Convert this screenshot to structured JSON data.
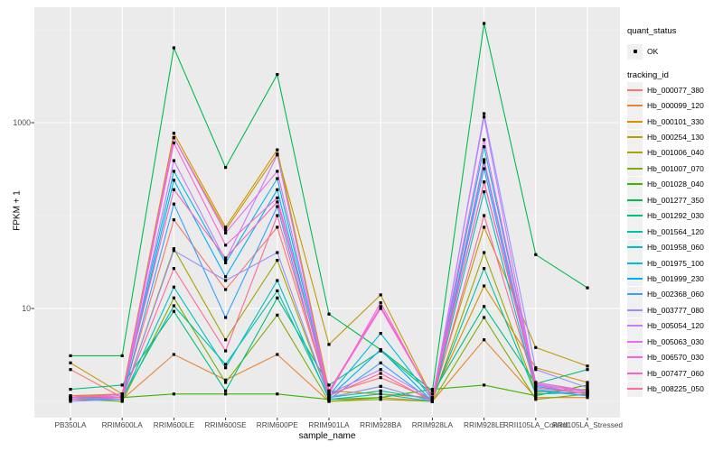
{
  "legend": {
    "quant_status_title": "quant_status",
    "ok_label": "OK",
    "tracking_id_title": "tracking_id"
  },
  "chart_data": {
    "type": "line",
    "title": "",
    "xlabel": "sample_name",
    "ylabel": "FPKM + 1",
    "yscale": "log10",
    "ylim": [
      1,
      17000
    ],
    "y_major_ticks": [
      1000,
      10
    ],
    "y_minor_gridlines": [
      1,
      100,
      10000
    ],
    "grid": true,
    "legend_position": "right",
    "panel_bg": "#EBEBEB",
    "gridline_color": "#FFFFFF",
    "point_color": "#000000",
    "point_shape": "square",
    "categories": [
      "PB350LA",
      "RRIM600LA",
      "RRIM600LE",
      "RRIM600SE",
      "RRIM600PE",
      "RRIM901LA",
      "RRIM928BA",
      "RRIM928LA",
      "RRIM928LE",
      "RRII105LA_Control",
      "RRII105LA_Stressed"
    ],
    "series": [
      {
        "name": "Hb_000077_380",
        "color": "#F8766D",
        "values": [
          2.2,
          1.1,
          90,
          16,
          75,
          1.2,
          1.8,
          1.05,
          230,
          1.5,
          1.3
        ]
      },
      {
        "name": "Hb_000099_120",
        "color": "#EA8331",
        "values": [
          1.1,
          1.05,
          3.2,
          1.7,
          3.2,
          1.0,
          1.1,
          1.0,
          4.6,
          1.1,
          1.1
        ]
      },
      {
        "name": "Hb_000101_330",
        "color": "#D89000",
        "values": [
          1.15,
          1.2,
          770,
          75,
          510,
          1.3,
          1.2,
          1.1,
          17.5,
          2.3,
          1.6
        ]
      },
      {
        "name": "Hb_000254_130",
        "color": "#C09B00",
        "values": [
          2.6,
          1.2,
          690,
          70,
          460,
          4.1,
          14,
          1.1,
          75,
          3.8,
          2.4
        ]
      },
      {
        "name": "Hb_001006_040",
        "color": "#A3A500",
        "values": [
          1.1,
          1.05,
          44,
          4.6,
          33,
          1.1,
          1.45,
          1.0,
          40,
          1.25,
          1.35
        ]
      },
      {
        "name": "Hb_001007_070",
        "color": "#7CAE00",
        "values": [
          1.05,
          1.0,
          13,
          1.6,
          8.5,
          1.0,
          1.05,
          1.0,
          8,
          1.05,
          1.2
        ]
      },
      {
        "name": "Hb_001028_040",
        "color": "#39B600",
        "values": [
          1.1,
          1.1,
          1.2,
          1.2,
          1.2,
          1.05,
          1.1,
          1.35,
          1.5,
          1.15,
          1.5
        ]
      },
      {
        "name": "Hb_001277_350",
        "color": "#00BB4E",
        "values": [
          3.1,
          3.1,
          6400,
          330,
          3300,
          8.7,
          3.6,
          1.3,
          11700,
          38,
          16.7
        ]
      },
      {
        "name": "Hb_001292_030",
        "color": "#00BF7D",
        "values": [
          1.35,
          1.5,
          9.3,
          1.3,
          13,
          1.5,
          3.5,
          1.2,
          10.5,
          1.55,
          2.2
        ]
      },
      {
        "name": "Hb_001564_120",
        "color": "#00C1A3",
        "values": [
          1.1,
          1.1,
          10.7,
          2.5,
          15.5,
          1.1,
          1.3,
          1.05,
          27,
          1.2,
          1.25
        ]
      },
      {
        "name": "Hb_001958_060",
        "color": "#00BFC4",
        "values": [
          1.05,
          1.05,
          17,
          2.3,
          20,
          1.05,
          1.2,
          1.0,
          180,
          1.3,
          1.15
        ]
      },
      {
        "name": "Hb_001975_100",
        "color": "#00BAE0",
        "values": [
          1.1,
          1.15,
          300,
          31,
          250,
          1.15,
          5.4,
          1.05,
          550,
          1.6,
          1.3
        ]
      },
      {
        "name": "Hb_001999_230",
        "color": "#00B0F6",
        "values": [
          1.05,
          1.1,
          240,
          22,
          190,
          1.1,
          3.6,
          1.0,
          375,
          1.45,
          1.2
        ]
      },
      {
        "name": "Hb_002368_060",
        "color": "#35A2FF",
        "values": [
          1.1,
          1.05,
          133,
          8.0,
          125,
          1.05,
          2.6,
          1.0,
          320,
          1.35,
          1.15
        ]
      },
      {
        "name": "Hb_003777_080",
        "color": "#9590FF",
        "values": [
          1.0,
          1.05,
          42,
          20,
          40,
          1.1,
          1.45,
          1.0,
          1250,
          2.2,
          1.4
        ]
      },
      {
        "name": "Hb_005054_120",
        "color": "#C77CFF",
        "values": [
          1.05,
          1.1,
          390,
          33,
          450,
          1.2,
          2.2,
          1.05,
          1150,
          1.5,
          1.3
        ]
      },
      {
        "name": "Hb_005063_030",
        "color": "#E76BF3",
        "values": [
          1.1,
          1.15,
          690,
          65,
          300,
          1.25,
          10,
          1.1,
          655,
          1.55,
          1.25
        ]
      },
      {
        "name": "Hb_006570_030",
        "color": "#FA62DB",
        "values": [
          1.05,
          1.1,
          605,
          48,
          155,
          1.2,
          11.5,
          1.05,
          400,
          1.5,
          1.2
        ]
      },
      {
        "name": "Hb_007477_060",
        "color": "#FF62BC",
        "values": [
          1.1,
          1.2,
          190,
          35,
          140,
          1.3,
          10.5,
          1.1,
          230,
          1.6,
          1.3
        ]
      },
      {
        "name": "Hb_008225_050",
        "color": "#FF6A98",
        "values": [
          1.15,
          1.1,
          27,
          3.5,
          100,
          1.15,
          2.0,
          1.0,
          100,
          1.4,
          1.2
        ]
      }
    ]
  }
}
